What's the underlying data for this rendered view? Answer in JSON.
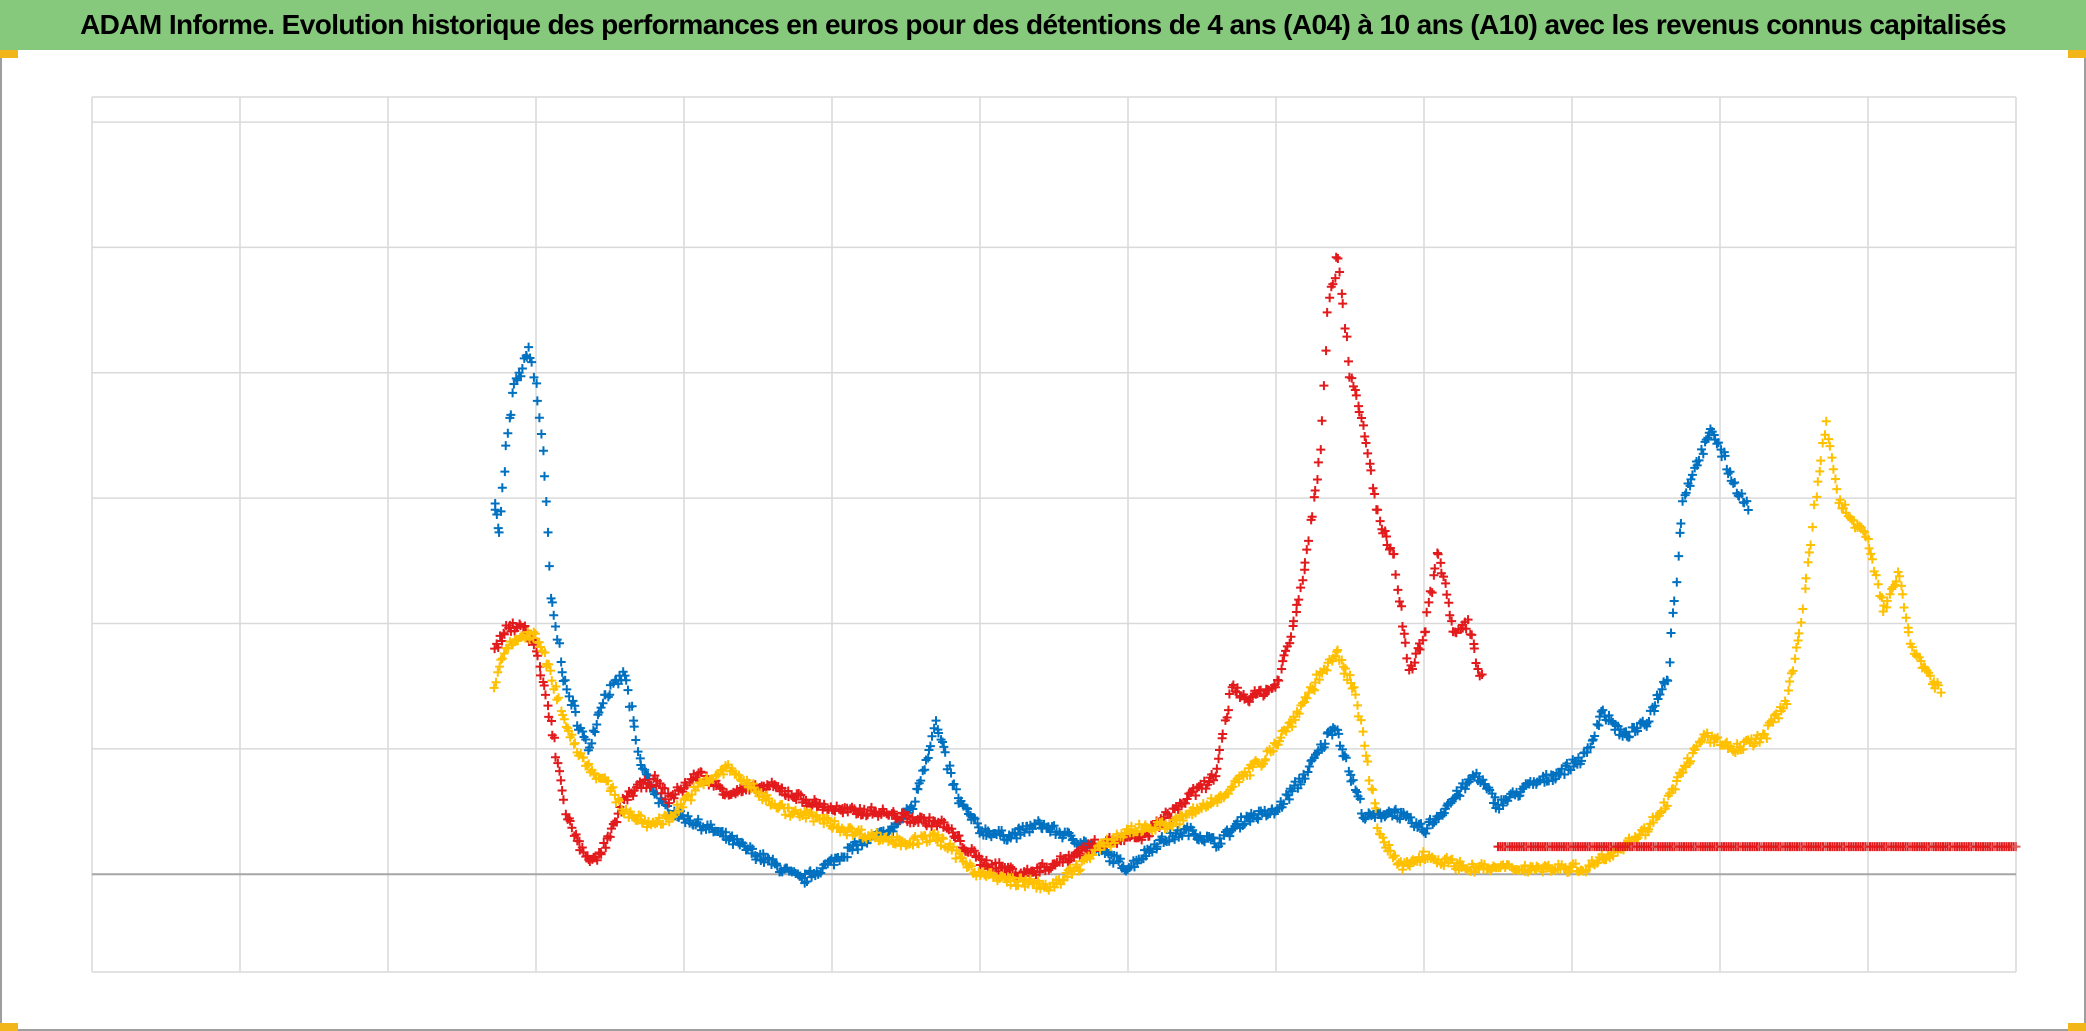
{
  "title": "ADAM Informe. Evolution historique des performances en euros pour des détentions de 4 ans (A04) à 10 ans (A10) avec les revenus connus capitalisés",
  "colors": {
    "title_bg": "#86c97d",
    "corner": "#f2b61b",
    "grid": "#d9d9d9",
    "baseline": "#a6a6a6"
  },
  "chart_data": {
    "type": "scatter",
    "marker": "plus",
    "title": "ADAM Informe. Evolution historique des performances en euros pour des détentions de 4 ans (A04) à 10 ans (A10) avec les revenus connus capitalisés",
    "xlabel": "",
    "ylabel": "",
    "xlim": [
      0,
      13
    ],
    "ylim": [
      -0.78,
      6.2
    ],
    "grid": true,
    "x_gridlines": 13,
    "y_gridlines": [
      0,
      1,
      2,
      3,
      4,
      5,
      6
    ],
    "tick_labels_visible": false,
    "legend": "none",
    "series": [
      {
        "color": "#0070c0",
        "anchors": [
          [
            2.72,
            3.0
          ],
          [
            2.75,
            2.7
          ],
          [
            2.8,
            3.4
          ],
          [
            2.85,
            3.9
          ],
          [
            2.9,
            4.0
          ],
          [
            2.95,
            4.2
          ],
          [
            3.0,
            3.9
          ],
          [
            3.05,
            3.4
          ],
          [
            3.1,
            2.2
          ],
          [
            3.2,
            1.5
          ],
          [
            3.35,
            1.0
          ],
          [
            3.45,
            1.4
          ],
          [
            3.6,
            1.6
          ],
          [
            3.7,
            0.9
          ],
          [
            3.85,
            0.55
          ],
          [
            4.0,
            0.45
          ],
          [
            4.2,
            0.35
          ],
          [
            4.5,
            0.15
          ],
          [
            4.8,
            -0.05
          ],
          [
            5.0,
            0.1
          ],
          [
            5.2,
            0.25
          ],
          [
            5.4,
            0.35
          ],
          [
            5.55,
            0.55
          ],
          [
            5.7,
            1.2
          ],
          [
            5.85,
            0.6
          ],
          [
            6.0,
            0.35
          ],
          [
            6.2,
            0.3
          ],
          [
            6.4,
            0.4
          ],
          [
            6.6,
            0.3
          ],
          [
            6.8,
            0.2
          ],
          [
            7.0,
            0.05
          ],
          [
            7.2,
            0.25
          ],
          [
            7.4,
            0.35
          ],
          [
            7.6,
            0.25
          ],
          [
            7.8,
            0.45
          ],
          [
            8.0,
            0.5
          ],
          [
            8.2,
            0.8
          ],
          [
            8.4,
            1.2
          ],
          [
            8.5,
            0.8
          ],
          [
            8.6,
            0.45
          ],
          [
            8.8,
            0.5
          ],
          [
            9.0,
            0.35
          ],
          [
            9.2,
            0.6
          ],
          [
            9.35,
            0.8
          ],
          [
            9.5,
            0.55
          ],
          [
            9.7,
            0.7
          ],
          [
            9.9,
            0.8
          ],
          [
            10.1,
            0.95
          ],
          [
            10.2,
            1.3
          ],
          [
            10.35,
            1.1
          ],
          [
            10.5,
            1.2
          ],
          [
            10.65,
            1.6
          ],
          [
            10.75,
            3.0
          ],
          [
            10.85,
            3.3
          ],
          [
            10.95,
            3.55
          ],
          [
            11.1,
            3.1
          ],
          [
            11.2,
            2.9
          ]
        ]
      },
      {
        "color": "#e31a1c",
        "anchors": [
          [
            2.72,
            1.8
          ],
          [
            2.8,
            1.95
          ],
          [
            2.9,
            2.0
          ],
          [
            3.0,
            1.8
          ],
          [
            3.1,
            1.2
          ],
          [
            3.2,
            0.5
          ],
          [
            3.3,
            0.2
          ],
          [
            3.4,
            0.1
          ],
          [
            3.5,
            0.3
          ],
          [
            3.6,
            0.6
          ],
          [
            3.7,
            0.7
          ],
          [
            3.8,
            0.75
          ],
          [
            3.9,
            0.6
          ],
          [
            4.1,
            0.8
          ],
          [
            4.3,
            0.65
          ],
          [
            4.6,
            0.7
          ],
          [
            4.9,
            0.55
          ],
          [
            5.1,
            0.5
          ],
          [
            5.3,
            0.5
          ],
          [
            5.5,
            0.45
          ],
          [
            5.75,
            0.4
          ],
          [
            6.0,
            0.1
          ],
          [
            6.3,
            0.0
          ],
          [
            6.5,
            0.08
          ],
          [
            6.8,
            0.25
          ],
          [
            7.1,
            0.3
          ],
          [
            7.4,
            0.6
          ],
          [
            7.6,
            0.8
          ],
          [
            7.7,
            1.5
          ],
          [
            7.8,
            1.4
          ],
          [
            7.9,
            1.45
          ],
          [
            8.0,
            1.5
          ],
          [
            8.1,
            1.9
          ],
          [
            8.2,
            2.5
          ],
          [
            8.3,
            3.4
          ],
          [
            8.35,
            4.5
          ],
          [
            8.42,
            4.95
          ],
          [
            8.5,
            4.0
          ],
          [
            8.6,
            3.5
          ],
          [
            8.7,
            2.8
          ],
          [
            8.8,
            2.5
          ],
          [
            8.9,
            1.6
          ],
          [
            9.0,
            1.9
          ],
          [
            9.1,
            2.6
          ],
          [
            9.2,
            1.9
          ],
          [
            9.3,
            2.0
          ],
          [
            9.4,
            1.5
          ]
        ]
      },
      {
        "color": "#ffc000",
        "anchors": [
          [
            2.72,
            1.5
          ],
          [
            2.8,
            1.8
          ],
          [
            2.9,
            1.9
          ],
          [
            3.0,
            1.9
          ],
          [
            3.1,
            1.6
          ],
          [
            3.2,
            1.2
          ],
          [
            3.3,
            0.95
          ],
          [
            3.4,
            0.8
          ],
          [
            3.5,
            0.7
          ],
          [
            3.6,
            0.5
          ],
          [
            3.75,
            0.4
          ],
          [
            3.9,
            0.45
          ],
          [
            4.1,
            0.7
          ],
          [
            4.3,
            0.85
          ],
          [
            4.5,
            0.65
          ],
          [
            4.7,
            0.5
          ],
          [
            4.9,
            0.45
          ],
          [
            5.1,
            0.35
          ],
          [
            5.3,
            0.3
          ],
          [
            5.5,
            0.25
          ],
          [
            5.7,
            0.3
          ],
          [
            6.0,
            0.0
          ],
          [
            6.2,
            -0.05
          ],
          [
            6.5,
            -0.1
          ],
          [
            6.8,
            0.2
          ],
          [
            7.0,
            0.35
          ],
          [
            7.3,
            0.4
          ],
          [
            7.6,
            0.6
          ],
          [
            7.9,
            0.9
          ],
          [
            8.1,
            1.2
          ],
          [
            8.3,
            1.6
          ],
          [
            8.42,
            1.75
          ],
          [
            8.55,
            1.4
          ],
          [
            8.7,
            0.3
          ],
          [
            8.85,
            0.05
          ],
          [
            9.0,
            0.15
          ],
          [
            9.3,
            0.05
          ],
          [
            9.6,
            0.05
          ],
          [
            9.9,
            0.05
          ],
          [
            10.1,
            0.05
          ],
          [
            10.3,
            0.2
          ],
          [
            10.5,
            0.35
          ],
          [
            10.65,
            0.6
          ],
          [
            10.78,
            0.9
          ],
          [
            10.9,
            1.1
          ],
          [
            11.1,
            1.0
          ],
          [
            11.3,
            1.1
          ],
          [
            11.45,
            1.4
          ],
          [
            11.55,
            2.0
          ],
          [
            11.65,
            3.0
          ],
          [
            11.72,
            3.6
          ],
          [
            11.8,
            3.0
          ],
          [
            11.9,
            2.8
          ],
          [
            12.0,
            2.7
          ],
          [
            12.1,
            2.1
          ],
          [
            12.2,
            2.4
          ],
          [
            12.3,
            1.8
          ],
          [
            12.4,
            1.6
          ],
          [
            12.5,
            1.45
          ]
        ]
      },
      {
        "color": "#e31a1c",
        "constant_y": 0.22,
        "x_from": 9.5,
        "x_to": 13.0
      }
    ]
  }
}
